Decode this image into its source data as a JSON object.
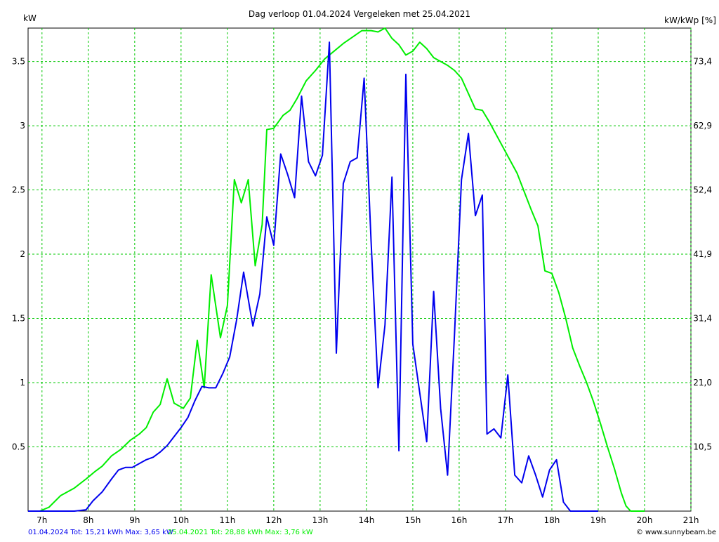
{
  "chart_data": {
    "type": "line",
    "title": "Dag  verloop 01.04.2024   Vergeleken met 25.04.2021",
    "y_left_label": "kW",
    "y_right_label": "kW/kWp [%]",
    "x_unit": "hour",
    "xlim": [
      6.7,
      21.0
    ],
    "ylim": [
      0,
      3.76
    ],
    "grid": true,
    "x_ticks": [
      {
        "value": 7,
        "label": "7h"
      },
      {
        "value": 8,
        "label": "8h"
      },
      {
        "value": 9,
        "label": "9h"
      },
      {
        "value": 10,
        "label": "10h"
      },
      {
        "value": 11,
        "label": "11h"
      },
      {
        "value": 12,
        "label": "12h"
      },
      {
        "value": 13,
        "label": "13h"
      },
      {
        "value": 14,
        "label": "14h"
      },
      {
        "value": 15,
        "label": "15h"
      },
      {
        "value": 16,
        "label": "16h"
      },
      {
        "value": 17,
        "label": "17h"
      },
      {
        "value": 18,
        "label": "18h"
      },
      {
        "value": 19,
        "label": "19h"
      },
      {
        "value": 20,
        "label": "20h"
      },
      {
        "value": 21,
        "label": "21h"
      }
    ],
    "y_left_ticks": [
      {
        "value": 0.5,
        "label": "0.5"
      },
      {
        "value": 1,
        "label": "1"
      },
      {
        "value": 1.5,
        "label": "1.5"
      },
      {
        "value": 2,
        "label": "2"
      },
      {
        "value": 2.5,
        "label": "2.5"
      },
      {
        "value": 3,
        "label": "3"
      },
      {
        "value": 3.5,
        "label": "3.5"
      }
    ],
    "y_right_ticks": [
      {
        "value": 0.5,
        "label": "10,5"
      },
      {
        "value": 1,
        "label": "21,0"
      },
      {
        "value": 1.5,
        "label": "31,4"
      },
      {
        "value": 2,
        "label": "41,9"
      },
      {
        "value": 2.5,
        "label": "52,4"
      },
      {
        "value": 3,
        "label": "62,9"
      },
      {
        "value": 3.5,
        "label": "73,4"
      }
    ],
    "series": [
      {
        "name": "25.04.2021",
        "color": "#00ee00",
        "points": [
          [
            6.7,
            0
          ],
          [
            6.95,
            0
          ],
          [
            7.15,
            0.03
          ],
          [
            7.4,
            0.12
          ],
          [
            7.7,
            0.18
          ],
          [
            7.95,
            0.25
          ],
          [
            8.15,
            0.31
          ],
          [
            8.3,
            0.35
          ],
          [
            8.5,
            0.43
          ],
          [
            8.7,
            0.48
          ],
          [
            8.9,
            0.55
          ],
          [
            9.1,
            0.6
          ],
          [
            9.25,
            0.65
          ],
          [
            9.4,
            0.77
          ],
          [
            9.55,
            0.83
          ],
          [
            9.7,
            1.03
          ],
          [
            9.85,
            0.84
          ],
          [
            10.05,
            0.8
          ],
          [
            10.2,
            0.88
          ],
          [
            10.35,
            1.33
          ],
          [
            10.5,
            0.96
          ],
          [
            10.65,
            1.84
          ],
          [
            10.85,
            1.35
          ],
          [
            11.0,
            1.6
          ],
          [
            11.15,
            2.58
          ],
          [
            11.3,
            2.4
          ],
          [
            11.45,
            2.58
          ],
          [
            11.6,
            1.91
          ],
          [
            11.75,
            2.23
          ],
          [
            11.85,
            2.97
          ],
          [
            12.0,
            2.98
          ],
          [
            12.2,
            3.08
          ],
          [
            12.35,
            3.12
          ],
          [
            12.5,
            3.21
          ],
          [
            12.7,
            3.35
          ],
          [
            12.9,
            3.43
          ],
          [
            13.1,
            3.52
          ],
          [
            13.3,
            3.58
          ],
          [
            13.5,
            3.64
          ],
          [
            13.7,
            3.69
          ],
          [
            13.9,
            3.74
          ],
          [
            14.1,
            3.74
          ],
          [
            14.25,
            3.73
          ],
          [
            14.4,
            3.76
          ],
          [
            14.55,
            3.68
          ],
          [
            14.7,
            3.63
          ],
          [
            14.85,
            3.55
          ],
          [
            15.0,
            3.58
          ],
          [
            15.15,
            3.65
          ],
          [
            15.3,
            3.6
          ],
          [
            15.45,
            3.53
          ],
          [
            15.6,
            3.5
          ],
          [
            15.75,
            3.47
          ],
          [
            15.9,
            3.43
          ],
          [
            16.05,
            3.37
          ],
          [
            16.2,
            3.25
          ],
          [
            16.35,
            3.13
          ],
          [
            16.5,
            3.12
          ],
          [
            16.65,
            3.03
          ],
          [
            16.8,
            2.93
          ],
          [
            16.95,
            2.83
          ],
          [
            17.1,
            2.73
          ],
          [
            17.25,
            2.63
          ],
          [
            17.4,
            2.49
          ],
          [
            17.55,
            2.35
          ],
          [
            17.7,
            2.22
          ],
          [
            17.85,
            1.87
          ],
          [
            18.0,
            1.85
          ],
          [
            18.15,
            1.7
          ],
          [
            18.3,
            1.5
          ],
          [
            18.45,
            1.27
          ],
          [
            18.6,
            1.13
          ],
          [
            18.75,
            1.0
          ],
          [
            18.9,
            0.85
          ],
          [
            19.05,
            0.68
          ],
          [
            19.2,
            0.5
          ],
          [
            19.35,
            0.33
          ],
          [
            19.5,
            0.14
          ],
          [
            19.6,
            0.04
          ],
          [
            19.7,
            0.0
          ],
          [
            20.0,
            0.0
          ]
        ]
      },
      {
        "name": "01.04.2024",
        "color": "#0000ee",
        "points": [
          [
            6.7,
            0
          ],
          [
            7.3,
            0
          ],
          [
            7.7,
            0
          ],
          [
            7.95,
            0.01
          ],
          [
            8.1,
            0.08
          ],
          [
            8.3,
            0.15
          ],
          [
            8.5,
            0.25
          ],
          [
            8.65,
            0.32
          ],
          [
            8.8,
            0.34
          ],
          [
            8.95,
            0.34
          ],
          [
            9.1,
            0.37
          ],
          [
            9.25,
            0.4
          ],
          [
            9.4,
            0.42
          ],
          [
            9.55,
            0.46
          ],
          [
            9.7,
            0.51
          ],
          [
            9.85,
            0.58
          ],
          [
            10.0,
            0.65
          ],
          [
            10.15,
            0.73
          ],
          [
            10.3,
            0.86
          ],
          [
            10.45,
            0.97
          ],
          [
            10.6,
            0.96
          ],
          [
            10.75,
            0.96
          ],
          [
            10.9,
            1.07
          ],
          [
            11.05,
            1.2
          ],
          [
            11.2,
            1.49
          ],
          [
            11.35,
            1.86
          ],
          [
            11.55,
            1.44
          ],
          [
            11.7,
            1.69
          ],
          [
            11.85,
            2.29
          ],
          [
            12.0,
            2.07
          ],
          [
            12.15,
            2.78
          ],
          [
            12.3,
            2.62
          ],
          [
            12.45,
            2.44
          ],
          [
            12.6,
            3.23
          ],
          [
            12.75,
            2.72
          ],
          [
            12.9,
            2.61
          ],
          [
            13.05,
            2.77
          ],
          [
            13.2,
            3.65
          ],
          [
            13.35,
            1.23
          ],
          [
            13.5,
            2.55
          ],
          [
            13.65,
            2.72
          ],
          [
            13.8,
            2.75
          ],
          [
            13.95,
            3.37
          ],
          [
            14.1,
            2.1
          ],
          [
            14.25,
            0.96
          ],
          [
            14.4,
            1.45
          ],
          [
            14.55,
            2.6
          ],
          [
            14.7,
            0.47
          ],
          [
            14.85,
            3.4
          ],
          [
            15.0,
            1.3
          ],
          [
            15.15,
            0.92
          ],
          [
            15.3,
            0.54
          ],
          [
            15.45,
            1.71
          ],
          [
            15.6,
            0.8
          ],
          [
            15.75,
            0.28
          ],
          [
            15.9,
            1.38
          ],
          [
            16.05,
            2.58
          ],
          [
            16.2,
            2.94
          ],
          [
            16.35,
            2.3
          ],
          [
            16.5,
            2.46
          ],
          [
            16.6,
            0.6
          ],
          [
            16.75,
            0.64
          ],
          [
            16.9,
            0.57
          ],
          [
            17.05,
            1.06
          ],
          [
            17.2,
            0.28
          ],
          [
            17.35,
            0.22
          ],
          [
            17.5,
            0.43
          ],
          [
            17.65,
            0.28
          ],
          [
            17.8,
            0.11
          ],
          [
            17.95,
            0.32
          ],
          [
            18.1,
            0.4
          ],
          [
            18.25,
            0.07
          ],
          [
            18.4,
            0.0
          ],
          [
            19.0,
            0.0
          ]
        ]
      }
    ],
    "footer": {
      "series1_text": "01.04.2024 Tot: 15,21 kWh Max: 3,65 kW",
      "series2_text": "25.04.2021 Tot: 28,88 kWh Max: 3,76 kW",
      "copyright": "© www.sunnybeam.be"
    }
  }
}
